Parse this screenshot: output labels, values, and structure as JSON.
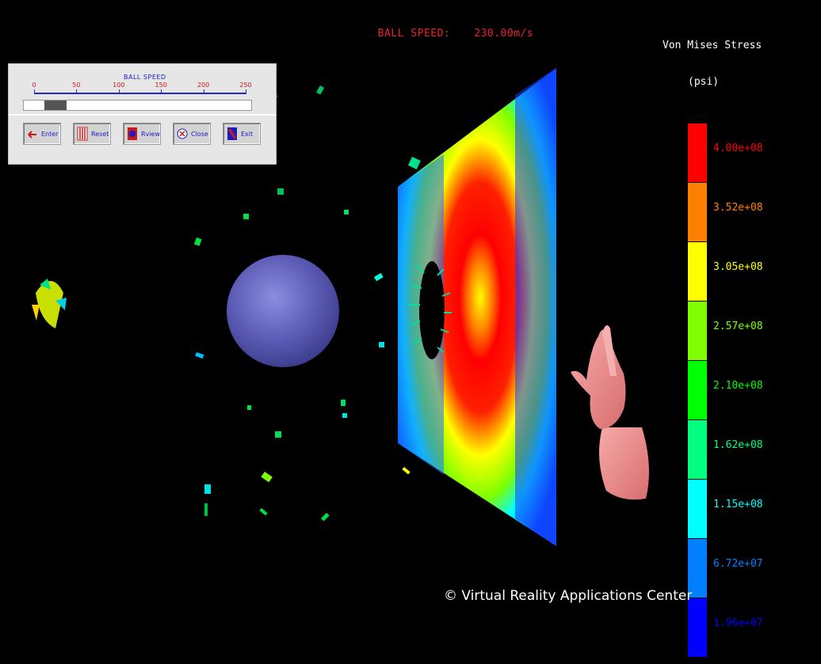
{
  "speed_readout": {
    "label": "BALL SPEED:",
    "value": "230.00m/s"
  },
  "legend": {
    "title": "Von Mises Stress",
    "unit": "(psi)",
    "bins": [
      {
        "label": "4.00e+08",
        "color": "#ff0000"
      },
      {
        "label": "3.52e+08",
        "color": "#ff7f00"
      },
      {
        "label": "3.05e+08",
        "color": "#ffff00"
      },
      {
        "label": "2.57e+08",
        "color": "#7fff00"
      },
      {
        "label": "2.10e+08",
        "color": "#00ff00"
      },
      {
        "label": "1.62e+08",
        "color": "#00ff7f"
      },
      {
        "label": "1.15e+08",
        "color": "#00ffff"
      },
      {
        "label": "6.72e+07",
        "color": "#007fff"
      },
      {
        "label": "1.96e+07",
        "color": "#0000ff"
      }
    ]
  },
  "control_panel": {
    "slider_title": "BALL SPEED",
    "ticks": [
      "0",
      "50",
      "100",
      "150",
      "200",
      "250"
    ],
    "slider_value": 0.1,
    "buttons": [
      {
        "label": "Enter",
        "icon": "enter-arrow-icon"
      },
      {
        "label": "Reset",
        "icon": "reset-bars-icon"
      },
      {
        "label": "Rview",
        "icon": "rview-icon"
      },
      {
        "label": "Close",
        "icon": "close-icon"
      },
      {
        "label": "Exit",
        "icon": "exit-icon"
      }
    ]
  },
  "copyright": "© Virtual Reality Applications Center",
  "colors": {
    "readout": "#e8232b",
    "sphere": "#5a5ab4",
    "hand": "#f08c8c",
    "background": "#000000"
  }
}
